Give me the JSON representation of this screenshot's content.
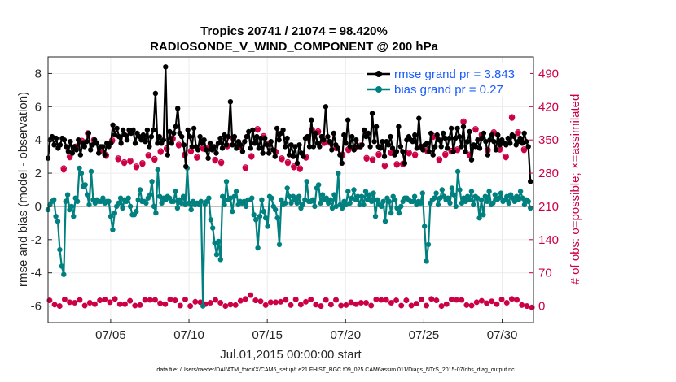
{
  "chart_data": {
    "type": "line",
    "title_line1": "Tropics 20741 / 21074 = 98.420%",
    "title_line2": "RADIOSONDE_V_WIND_COMPONENT @ 200 hPa",
    "ylabel": "rmse and bias (model - observation)",
    "y2label": "# of obs: o=possible; ×=assimilated",
    "xlabel": "Jul.01,2015 00:00:00 start",
    "footnote": "data file: /Users/raeder/DAI/ATM_forcXX/CAM6_setup/f.e21.FHIST_BGC.f09_025.CAM6assim.011/Diags_NTrS_2015-07/obs_diag_output.nc",
    "ylim": [
      -7,
      9
    ],
    "y2lim": [
      -35,
      525
    ],
    "xlim": [
      1.0,
      32.0
    ],
    "yticks": [
      {
        "v": 8,
        "label": "8"
      },
      {
        "v": 6,
        "label": "6"
      },
      {
        "v": 4,
        "label": "4"
      },
      {
        "v": 2,
        "label": "2"
      },
      {
        "v": 0,
        "label": "0"
      },
      {
        "v": -2,
        "label": "-2"
      },
      {
        "v": -4,
        "label": "-4"
      },
      {
        "v": -6,
        "label": "-6"
      }
    ],
    "y2ticks": [
      {
        "v": 490,
        "label": "490"
      },
      {
        "v": 420,
        "label": "420"
      },
      {
        "v": 350,
        "label": "350"
      },
      {
        "v": 280,
        "label": "280"
      },
      {
        "v": 210,
        "label": "210"
      },
      {
        "v": 140,
        "label": "140"
      },
      {
        "v": 70,
        "label": "70"
      },
      {
        "v": 0,
        "label": "0"
      }
    ],
    "xticks": [
      {
        "v": 5,
        "label": "07/05"
      },
      {
        "v": 10,
        "label": "07/10"
      },
      {
        "v": 15,
        "label": "07/15"
      },
      {
        "v": 20,
        "label": "07/20"
      },
      {
        "v": 25,
        "label": "07/25"
      },
      {
        "v": 30,
        "label": "07/30"
      }
    ],
    "legend": [
      {
        "name": "rmse grand pr = 3.843",
        "color": "#000000"
      },
      {
        "name": "bias grand pr = 0.27",
        "color": "#00807f"
      }
    ],
    "colors": {
      "rmse": "#000000",
      "bias": "#00807f",
      "obs": "#cc0044",
      "zero": "#bfbfbf"
    },
    "series": [
      {
        "name": "rmse",
        "values": [
          2.9,
          4.0,
          4.2,
          3.7,
          4.1,
          3.5,
          3.7,
          4.1,
          4.0,
          3.6,
          3.3,
          3.9,
          3.2,
          3.6,
          3.4,
          4.0,
          3.1,
          3.8,
          3.6,
          3.9,
          4.4,
          3.4,
          3.7,
          4.0,
          3.8,
          3.2,
          3.6,
          3.6,
          3.1,
          3.8,
          3.6,
          3.8,
          4.9,
          4.3,
          4.7,
          4.2,
          3.8,
          4.6,
          4.3,
          4.0,
          4.6,
          4.4,
          4.6,
          3.8,
          4.4,
          4.2,
          4.0,
          4.3,
          3.9,
          4.6,
          3.6,
          4.2,
          4.6,
          6.8,
          3.8,
          4.2,
          3.8,
          4.0,
          8.4,
          3.1,
          4.5,
          3.8,
          4.4,
          4.8,
          5.9,
          4.4,
          4.2,
          3.7,
          2.4,
          4.6,
          4.2,
          3.6,
          4.7,
          3.6,
          3.4,
          4.2,
          3.8,
          4.0,
          3.4,
          2.9,
          3.8,
          3.4,
          3.6,
          3.2,
          3.8,
          4.1,
          3.5,
          4.3,
          3.7,
          4.2,
          6.3,
          3.7,
          4.2,
          3.5,
          3.9,
          3.7,
          3.3,
          3.9,
          4.2,
          4.5,
          3.5,
          4.6,
          3.8,
          4.2,
          3.5,
          4.1,
          3.2,
          4.1,
          3.7,
          3.2,
          3.9,
          3.4,
          3.0,
          4.7,
          4.0,
          4.4,
          4.6,
          3.6,
          4.1,
          3.1,
          3.7,
          3.0,
          3.6,
          2.6,
          3.7,
          3.2,
          3.0,
          4.1,
          4.2,
          3.6,
          5.2,
          3.6,
          4.4,
          3.8,
          3.6,
          4.2,
          4.0,
          6.0,
          4.2,
          3.9,
          3.4,
          4.4,
          3.7,
          3.5,
          3.1,
          2.6,
          4.3,
          3.8,
          5.2,
          3.6,
          4.2,
          3.4,
          4.0,
          3.6,
          3.6,
          3.7,
          4.6,
          4.2,
          4.4,
          3.6,
          5.6,
          3.9,
          4.8,
          3.6,
          3.5,
          3.9,
          3.0,
          3.9,
          3.7,
          4.2,
          3.5,
          3.1,
          3.3,
          4.8,
          3.6,
          3.3,
          2.6,
          4.0,
          4.2,
          4.0,
          3.9,
          4.3,
          3.5,
          5.3,
          3.6,
          3.4,
          3.7,
          3.8,
          3.3,
          4.4,
          3.1,
          3.6,
          4.3,
          4.0,
          3.6,
          4.4,
          4.1,
          3.5,
          4.1,
          4.7,
          3.3,
          4.1,
          4.7,
          4.2,
          3.6,
          4.8,
          3.3,
          3.9,
          4.5,
          2.8,
          3.7,
          3.6,
          4.0,
          3.5,
          4.1,
          4.4,
          3.9,
          3.1,
          4.0,
          4.3,
          3.9,
          3.4,
          4.3,
          3.7,
          4.0,
          3.8,
          3.7,
          4.1,
          3.8,
          4.3,
          4.2,
          3.7,
          3.9,
          4.1,
          3.8,
          4.4,
          3.9,
          3.6,
          1.5
        ]
      },
      {
        "name": "bias",
        "values": [
          -0.2,
          0.1,
          0.3,
          0.4,
          -0.6,
          -0.9,
          -2.6,
          -3.6,
          -4.1,
          0.3,
          0.7,
          -0.2,
          0.0,
          -0.6,
          0.5,
          0.3,
          2.3,
          2.0,
          1.2,
          1.3,
          0.7,
          0.1,
          2.1,
          0.4,
          0.2,
          0.4,
          0.3,
          0.3,
          0.5,
          0.2,
          0.3,
          0.3,
          -0.6,
          -1.4,
          -0.4,
          0.0,
          0.2,
          0.5,
          -0.1,
          0.4,
          0.3,
          0.5,
          0.0,
          -0.5,
          -0.5,
          -0.3,
          0.4,
          1.0,
          0.3,
          0.3,
          0.2,
          0.5,
          0.7,
          1.5,
          0.0,
          -0.4,
          2.2,
          0.6,
          0.2,
          0.5,
          0.4,
          0.6,
          0.5,
          0.3,
          0.3,
          0.9,
          -0.1,
          0.4,
          0.2,
          0.6,
          0.1,
          2.3,
          0.2,
          -0.2,
          0.3,
          0.1,
          0.2,
          0.1,
          0.3,
          -6.0,
          0.1,
          0.3,
          0.5,
          -0.8,
          -1.3,
          -2.2,
          -2.9,
          -2.1,
          -3.2,
          0.6,
          0.1,
          1.5,
          0.4,
          0.5,
          -0.3,
          0.6,
          0.9,
          0.1,
          0.3,
          0.2,
          0.3,
          0.0,
          0.4,
          0.4,
          0.5,
          -0.5,
          -0.8,
          -2.5,
          -0.6,
          0.4,
          -0.3,
          -0.7,
          -1.2,
          0.6,
          0.5,
          0.0,
          -0.2,
          -0.7,
          -2.3,
          0.4,
          0.1,
          0.2,
          1.1,
          0.6,
          0.2,
          0.6,
          0.4,
          0.2,
          0.6,
          -0.1,
          0.1,
          0.4,
          1.5,
          0.3,
          0.3,
          0.4,
          0.0,
          1.1,
          1.3,
          0.2,
          0.7,
          0.4,
          0.5,
          0.2,
          0.4,
          -0.1,
          0.7,
          0.0,
          2.0,
          0.1,
          -0.1,
          0.3,
          0.1,
          0.9,
          0.2,
          0.5,
          1.0,
          0.4,
          0.6,
          0.1,
          0.6,
          0.1,
          0.9,
          0.4,
          0.7,
          0.3,
          0.8,
          -0.6,
          0.4,
          0.1,
          0.0,
          0.3,
          -0.9,
          0.5,
          0.3,
          -0.4,
          0.6,
          0.4,
          -0.1,
          -0.4,
          0.0,
          0.3,
          0.5,
          0.5,
          0.4,
          0.3,
          0.3,
          0.6,
          0.1,
          0.3,
          0.2,
          0.8,
          -1.2,
          -3.3,
          -2.3,
          0.2,
          0.4,
          0.5,
          0.8,
          0.1,
          0.5,
          1.0,
          0.6,
          0.4,
          0.5,
          0.2,
          1.1,
          0.7,
          0.0,
          2.1,
          1.0,
          0.2,
          0.5,
          0.3,
          0.6,
          0.4,
          0.9,
          0.1,
          0.6,
          0.5,
          -0.7,
          0.4,
          -0.5,
          0.6,
          0.3,
          0.9,
          0.1,
          0.2,
          0.7,
          0.4,
          0.5,
          0.8,
          0.3,
          0.4,
          0.6,
          0.2,
          0.7,
          0.5,
          0.3,
          0.6,
          0.4,
          0.9,
          0.5,
          0.1,
          0.4,
          0.3,
          -0.1
        ]
      }
    ],
    "obs_possible": [
      290,
      315,
      336,
      348,
      364,
      350,
      327,
      318,
      349,
      311,
      303,
      306,
      294,
      301,
      318,
      310,
      326,
      332,
      353,
      340,
      319,
      327,
      314,
      333,
      335,
      308,
      303,
      338,
      354,
      336,
      292,
      316,
      373,
      358,
      343,
      325,
      311,
      303,
      294,
      290,
      314,
      371,
      368,
      345,
      345,
      334,
      319,
      330,
      333,
      338,
      312,
      309,
      320,
      296,
      324,
      299,
      300,
      323,
      319,
      336,
      328,
      358,
      309,
      320,
      327,
      330,
      389,
      319,
      373,
      361,
      329,
      366,
      331,
      315,
      398,
      366,
      330
    ],
    "obs_assimilated": [
      287,
      313,
      334,
      346,
      362,
      348,
      325,
      316,
      347,
      309,
      301,
      304,
      292,
      299,
      316,
      308,
      324,
      330,
      351,
      338,
      317,
      325,
      312,
      331,
      333,
      306,
      301,
      336,
      352,
      334,
      290,
      314,
      371,
      356,
      341,
      323,
      309,
      301,
      292,
      288,
      312,
      369,
      366,
      343,
      343,
      332,
      317,
      328,
      331,
      336,
      310,
      307,
      318,
      294,
      322,
      297,
      298,
      321,
      317,
      334,
      326,
      356,
      307,
      318,
      325,
      328,
      387,
      317,
      371,
      359,
      327,
      364,
      329,
      313,
      396,
      364,
      328
    ],
    "obs_low": [
      12,
      3,
      0,
      14,
      8,
      7,
      13,
      1,
      7,
      4,
      12,
      14,
      8,
      15,
      4,
      4,
      11,
      1,
      2,
      13,
      13,
      13,
      6,
      4,
      14,
      12,
      1,
      14,
      0,
      9,
      8,
      4,
      7,
      13,
      7,
      0,
      3,
      2,
      11,
      15,
      23,
      12,
      10,
      2,
      8,
      8,
      9,
      13,
      2,
      14,
      3,
      9,
      14,
      3,
      0,
      13,
      3,
      13,
      1,
      2,
      8,
      4,
      7,
      7,
      1,
      14,
      13,
      13,
      7,
      12,
      1,
      12,
      1,
      5,
      14,
      1,
      15,
      12,
      0,
      4,
      14,
      13,
      13,
      2,
      1,
      8,
      11,
      6,
      10,
      4,
      14,
      7,
      15,
      13,
      2,
      0,
      -3
    ]
  }
}
